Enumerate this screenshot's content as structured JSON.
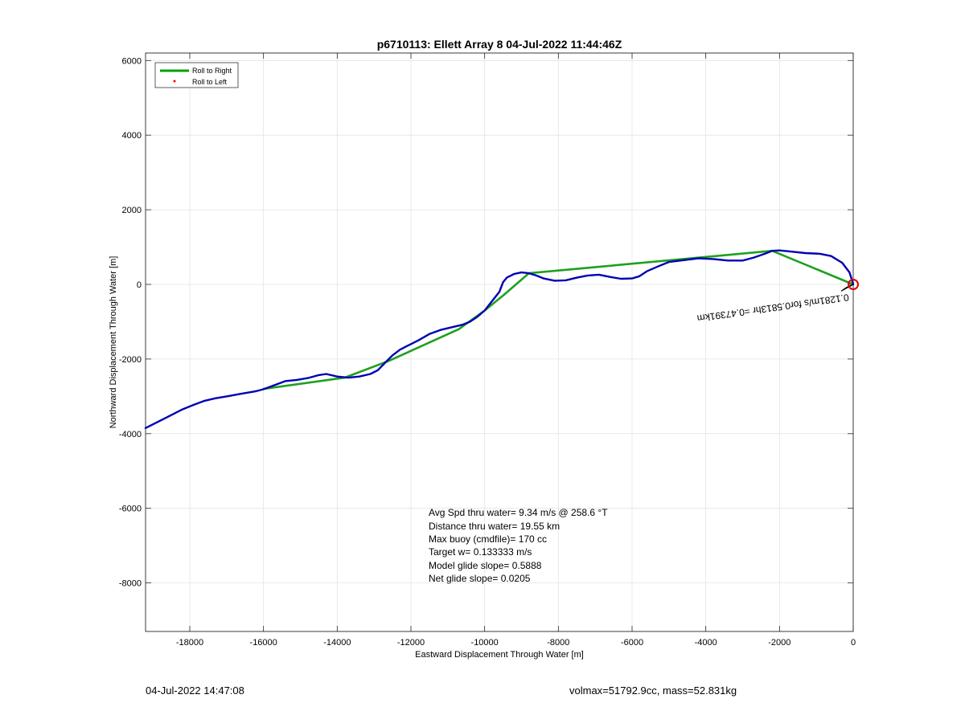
{
  "chart_data": {
    "type": "line",
    "title": "p6710113: Ellett Array 8 04-Jul-2022 11:44:46Z",
    "xlabel": "Eastward Displacement Through Water [m]",
    "ylabel": "Northward Displacement Through Water [m]",
    "xlim": [
      -19200,
      0
    ],
    "ylim": [
      -9300,
      6200
    ],
    "xticks": [
      -18000,
      -16000,
      -14000,
      -12000,
      -10000,
      -8000,
      -6000,
      -4000,
      -2000,
      0
    ],
    "yticks": [
      -8000,
      -6000,
      -4000,
      -2000,
      0,
      2000,
      4000,
      6000
    ],
    "xtick_labels": [
      "-18000",
      "-16000",
      "-14000",
      "-12000",
      "-10000",
      "-8000",
      "-6000",
      "-4000",
      "-2000",
      "0"
    ],
    "ytick_labels": [
      "-8000",
      "-6000",
      "-4000",
      "-2000",
      "0",
      "2000",
      "4000",
      "6000"
    ],
    "grid": true,
    "legend_position": "top-left",
    "legend": [
      {
        "label": "Roll to Right",
        "color": "#00a000",
        "style": "line"
      },
      {
        "label": "Roll to Left",
        "color": "#ff0000",
        "style": "dot"
      }
    ],
    "series": [
      {
        "name": "Roll to Right",
        "color": "#1fa01f",
        "x": [
          0,
          -2200,
          -8800,
          -9500,
          -10000,
          -10700,
          -12600,
          -13800,
          -16000
        ],
        "y": [
          0,
          900,
          300,
          -300,
          -700,
          -1200,
          -2050,
          -2500,
          -2800
        ]
      },
      {
        "color": "#0000b4",
        "x": [
          -19200,
          -18600,
          -18200,
          -17900,
          -17600,
          -17300,
          -17000,
          -16600,
          -16200,
          -16000,
          -15700,
          -15400,
          -15100,
          -14800,
          -14500,
          -14300,
          -14000,
          -13700,
          -13400,
          -13100,
          -12900,
          -12700,
          -12500,
          -12300,
          -12100,
          -11800,
          -11500,
          -11200,
          -10900,
          -10600,
          -10400,
          -10200,
          -10000,
          -9800,
          -9600,
          -9500,
          -9400,
          -9200,
          -9000,
          -8800,
          -8600,
          -8400,
          -8100,
          -7800,
          -7500,
          -7200,
          -6900,
          -6600,
          -6300,
          -6000,
          -5800,
          -5600,
          -5300,
          -5000,
          -4600,
          -4200,
          -3800,
          -3400,
          -3000,
          -2700,
          -2400,
          -2200,
          -2000,
          -1700,
          -1300,
          -900,
          -600,
          -300,
          -100,
          0
        ],
        "y": [
          -3850,
          -3550,
          -3350,
          -3230,
          -3120,
          -3050,
          -3000,
          -2930,
          -2860,
          -2810,
          -2700,
          -2590,
          -2560,
          -2510,
          -2430,
          -2400,
          -2470,
          -2500,
          -2470,
          -2400,
          -2300,
          -2100,
          -1900,
          -1750,
          -1650,
          -1500,
          -1330,
          -1220,
          -1150,
          -1080,
          -1000,
          -870,
          -700,
          -450,
          -200,
          60,
          180,
          280,
          320,
          300,
          240,
          160,
          100,
          110,
          180,
          240,
          260,
          200,
          150,
          160,
          220,
          350,
          480,
          600,
          650,
          700,
          680,
          640,
          640,
          720,
          820,
          900,
          910,
          880,
          840,
          820,
          760,
          580,
          320,
          10
        ]
      }
    ],
    "annotations": [
      "0.1281m/s for0.5813hr =0.47391km"
    ],
    "stats": [
      "Avg Spd thru water=  9.34 m/s @ 258.6 °T",
      "Distance thru water= 19.55 km",
      "Max buoy (cmdfile)= 170 cc",
      "Target w= 0.133333 m/s",
      "Model glide slope= 0.5888",
      "Net glide slope= 0.0205"
    ]
  },
  "footer": {
    "left": "04-Jul-2022 14:47:08",
    "right": "volmax=51792.9cc, mass=52.831kg"
  }
}
